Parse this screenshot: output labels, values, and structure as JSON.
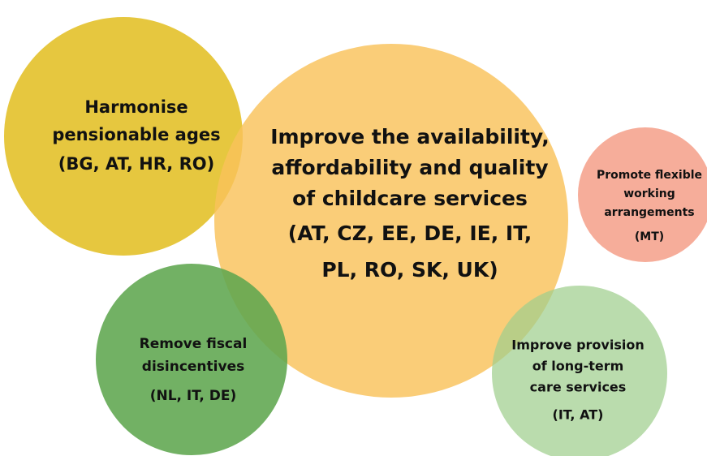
{
  "nodes": [
    {
      "label": [
        "Harmonise",
        "pensionable ages"
      ],
      "countries": [
        "(BG, AT, HR, RO)"
      ]
    },
    {
      "label": [
        "Improve the availability,",
        "affordability and quality",
        "of childcare services"
      ],
      "countries": [
        "(AT, CZ, EE, DE, IE, IT,",
        "PL, RO, SK, UK)"
      ]
    },
    {
      "label": [
        "Promote flexible",
        "working",
        "arrangements"
      ],
      "countries": [
        "(MT)"
      ]
    },
    {
      "label": [
        "Remove fiscal",
        "disincentives"
      ],
      "countries": [
        "(NL, IT, DE)"
      ]
    },
    {
      "label": [
        "Improve provision",
        "of long-term",
        "care services"
      ],
      "countries": [
        "(IT, AT)"
      ]
    }
  ]
}
